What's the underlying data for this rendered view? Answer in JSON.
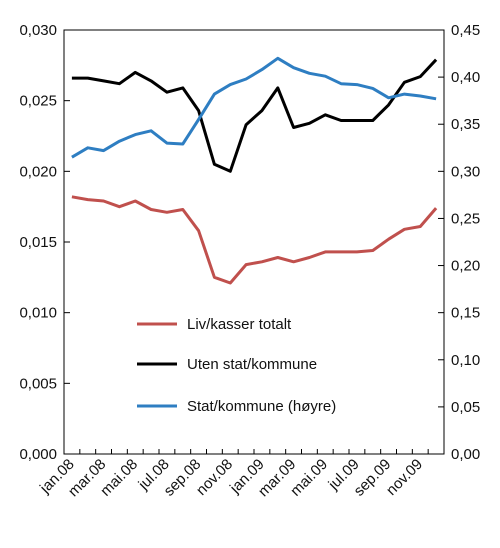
{
  "chart_data": {
    "type": "line",
    "title": "",
    "xlabel": "",
    "ylabel_left": "",
    "ylabel_right": "",
    "x": [
      "jan.08",
      "feb.08",
      "mar.08",
      "apr.08",
      "mai.08",
      "jun.08",
      "jul.08",
      "aug.08",
      "sep.08",
      "okt.08",
      "nov.08",
      "des.08",
      "jan.09",
      "feb.09",
      "mar.09",
      "apr.09",
      "mai.09",
      "jun.09",
      "jul.09",
      "aug.09",
      "sep.09",
      "okt.09",
      "nov.09",
      "des.09"
    ],
    "x_tick_labels": [
      "jan.08",
      "mar.08",
      "mai.08",
      "jul.08",
      "sep.08",
      "nov.08",
      "jan.09",
      "mar.09",
      "mai.09",
      "jul.09",
      "sep.09",
      "nov.09"
    ],
    "y_left": {
      "lim": [
        0,
        0.03
      ],
      "ticks": [
        "0,000",
        "0,005",
        "0,010",
        "0,015",
        "0,020",
        "0,025",
        "0,030"
      ]
    },
    "y_right": {
      "lim": [
        0,
        0.45
      ],
      "ticks": [
        "0,00",
        "0,05",
        "0,10",
        "0,15",
        "0,20",
        "0,25",
        "0,30",
        "0,35",
        "0,40",
        "0,45"
      ]
    },
    "grid": false,
    "legend_position": "center",
    "series": [
      {
        "name": "Liv/kasser totalt",
        "axis": "left",
        "color": "#c0504d",
        "values": [
          0.0182,
          0.018,
          0.0179,
          0.0175,
          0.0179,
          0.0173,
          0.0171,
          0.0173,
          0.0158,
          0.0125,
          0.0121,
          0.0134,
          0.0136,
          0.0139,
          0.0136,
          0.0139,
          0.0143,
          0.0143,
          0.0143,
          0.0144,
          0.0152,
          0.0159,
          0.0161,
          0.0174
        ]
      },
      {
        "name": "Uten stat/kommune",
        "axis": "left",
        "color": "#000000",
        "values": [
          0.0266,
          0.0266,
          0.0264,
          0.0262,
          0.027,
          0.0264,
          0.0256,
          0.0259,
          0.0243,
          0.0205,
          0.02,
          0.0233,
          0.0243,
          0.0259,
          0.0231,
          0.0234,
          0.024,
          0.0236,
          0.0236,
          0.0236,
          0.0247,
          0.0263,
          0.0267,
          0.0279
        ]
      },
      {
        "name": "Stat/kommune (høyre)",
        "axis": "right",
        "color": "#2e7ec2",
        "values": [
          0.315,
          0.325,
          0.322,
          0.332,
          0.339,
          0.343,
          0.33,
          0.329,
          0.355,
          0.382,
          0.392,
          0.398,
          0.408,
          0.42,
          0.41,
          0.404,
          0.401,
          0.393,
          0.392,
          0.388,
          0.378,
          0.382,
          0.38,
          0.377
        ]
      }
    ]
  }
}
